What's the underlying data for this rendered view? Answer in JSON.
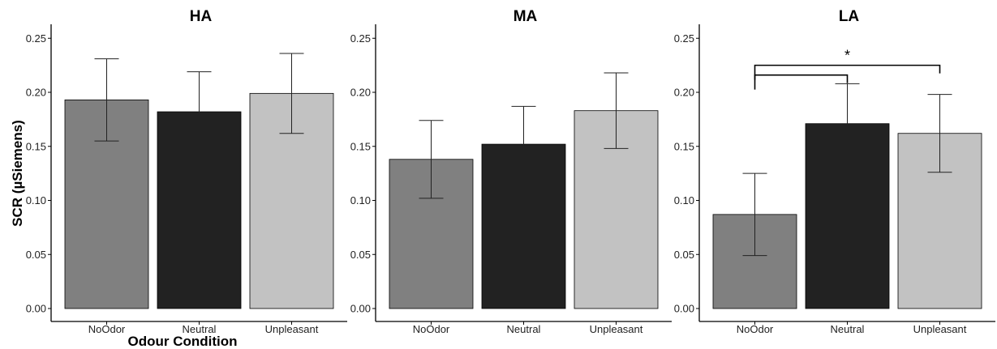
{
  "chart_data": [
    {
      "type": "bar",
      "title": "HA",
      "categories": [
        "NoOdor",
        "Neutral",
        "Unpleasant"
      ],
      "values": [
        0.193,
        0.182,
        0.199
      ],
      "errors": [
        0.038,
        0.037,
        0.037
      ],
      "colors": [
        "#808080",
        "#222222",
        "#c2c2c2"
      ],
      "ylim": [
        0,
        0.26
      ],
      "yticks": [
        "0.00",
        "0.05",
        "0.10",
        "0.15",
        "0.20",
        "0.25"
      ],
      "ylabel": "SCR (µSiemens)",
      "xlabel": "Odour Condition",
      "grid": false,
      "significance": []
    },
    {
      "type": "bar",
      "title": "MA",
      "categories": [
        "NoOdor",
        "Neutral",
        "Unpleasant"
      ],
      "values": [
        0.138,
        0.152,
        0.183
      ],
      "errors": [
        0.036,
        0.035,
        0.035
      ],
      "colors": [
        "#808080",
        "#222222",
        "#c2c2c2"
      ],
      "ylim": [
        0,
        0.26
      ],
      "yticks": [
        "0.00",
        "0.05",
        "0.10",
        "0.15",
        "0.20",
        "0.25"
      ],
      "ylabel": "",
      "xlabel": "",
      "grid": false,
      "significance": []
    },
    {
      "type": "bar",
      "title": "LA",
      "categories": [
        "NoOdor",
        "Neutral",
        "Unpleasant"
      ],
      "values": [
        0.087,
        0.171,
        0.162
      ],
      "errors": [
        0.038,
        0.037,
        0.036
      ],
      "colors": [
        "#808080",
        "#222222",
        "#c2c2c2"
      ],
      "ylim": [
        0,
        0.26
      ],
      "yticks": [
        "0.00",
        "0.05",
        "0.10",
        "0.15",
        "0.20",
        "0.25"
      ],
      "ylabel": "",
      "xlabel": "",
      "grid": false,
      "significance": [
        {
          "from": "NoOdor",
          "to": "Unpleasant",
          "y": 0.225,
          "label": "*"
        },
        {
          "from": "NoOdor",
          "to": "Neutral",
          "y": 0.216,
          "label": ""
        }
      ]
    }
  ]
}
